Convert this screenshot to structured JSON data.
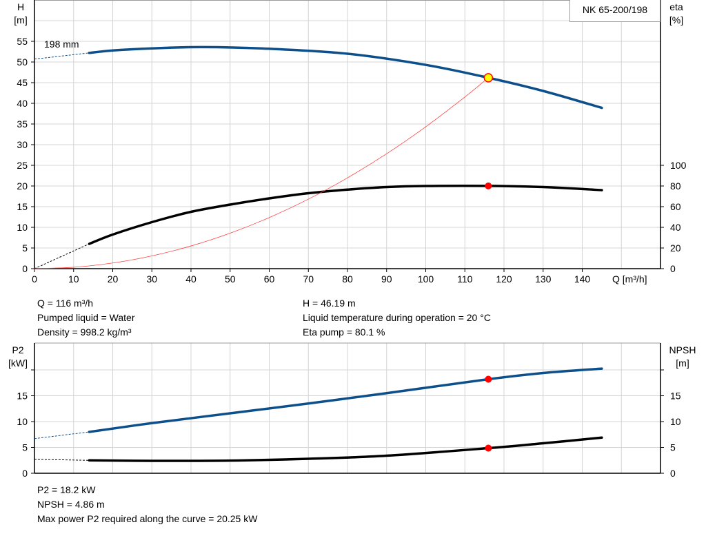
{
  "model": "NK 65-200/198",
  "chart_data": [
    {
      "type": "line",
      "name_label": "198 mm",
      "xlabel": "Q [m³/h]",
      "ylabel_left": [
        "H",
        "[m]"
      ],
      "ylabel_right": [
        "eta",
        "[%]"
      ],
      "xlim": [
        0,
        160
      ],
      "ylim_left": [
        0,
        65
      ],
      "ylim_right": [
        0,
        100
      ],
      "x_ticks": [
        0,
        10,
        20,
        30,
        40,
        50,
        60,
        70,
        80,
        90,
        100,
        110,
        120,
        130,
        140
      ],
      "y_ticks_left": [
        0,
        5,
        10,
        15,
        20,
        25,
        30,
        35,
        40,
        45,
        50,
        55
      ],
      "y_ticks_right": [
        0,
        20,
        40,
        60,
        80,
        100
      ],
      "grid": true,
      "series": [
        {
          "id": "head",
          "axis": "left",
          "color": "#0d4f8b",
          "x": [
            14,
            20,
            30,
            43,
            60,
            80,
            100,
            116,
            130,
            145
          ],
          "y": [
            52.2,
            52.8,
            53.3,
            53.6,
            53.2,
            52.0,
            49.3,
            46.19,
            43.0,
            38.9
          ],
          "extrapolated": {
            "x": [
              0,
              14
            ],
            "y": [
              50.7,
              52.2
            ]
          }
        },
        {
          "id": "eta",
          "axis": "right",
          "color": "#000000",
          "x": [
            14,
            20,
            30,
            40,
            50,
            60,
            70,
            80,
            90,
            100,
            116,
            130,
            145
          ],
          "y": [
            24,
            33,
            45,
            55,
            62,
            68,
            73,
            76.5,
            79,
            80,
            80.1,
            79,
            76
          ],
          "extrapolated": {
            "x": [
              0,
              14
            ],
            "y": [
              0,
              24
            ]
          }
        },
        {
          "id": "system",
          "axis": "left",
          "color": "#ff4040",
          "x": [
            0,
            10,
            20,
            30,
            40,
            50,
            60,
            70,
            80,
            90,
            100,
            110,
            116
          ],
          "y": [
            0,
            0.34,
            1.37,
            3.09,
            5.49,
            8.58,
            12.36,
            16.82,
            21.97,
            27.8,
            34.33,
            41.54,
            46.19
          ]
        }
      ],
      "operating_point": {
        "x": 116,
        "H": 46.19,
        "eta": 80.1
      }
    },
    {
      "type": "line",
      "ylabel_left": [
        "P2",
        "[kW]"
      ],
      "ylabel_right": [
        "NPSH",
        "[m]"
      ],
      "xlim": [
        0,
        160
      ],
      "ylim": [
        0,
        25.2
      ],
      "y_ticks": [
        0,
        5,
        10,
        15,
        20
      ],
      "y_tick_labels": [
        "0",
        "5",
        "10",
        "15",
        ""
      ],
      "grid": true,
      "series": [
        {
          "id": "p2",
          "color": "#0d4f8b",
          "x": [
            14,
            30,
            50,
            70,
            90,
            116,
            130,
            145
          ],
          "y": [
            8.0,
            9.7,
            11.6,
            13.5,
            15.5,
            18.2,
            19.4,
            20.25
          ],
          "extrapolated": {
            "x": [
              0,
              14
            ],
            "y": [
              6.7,
              8.0
            ]
          }
        },
        {
          "id": "npsh",
          "color": "#000000",
          "x": [
            14,
            30,
            50,
            70,
            90,
            116,
            130,
            145
          ],
          "y": [
            2.5,
            2.4,
            2.45,
            2.8,
            3.4,
            4.86,
            5.8,
            6.9
          ],
          "extrapolated": {
            "x": [
              0,
              14
            ],
            "y": [
              2.7,
              2.5
            ]
          }
        }
      ],
      "operating_point": {
        "x": 116,
        "P2": 18.2,
        "NPSH": 4.86
      }
    }
  ],
  "info_top": {
    "q": "Q = 116 m³/h",
    "liquid": "Pumped liquid = Water",
    "density": "Density = 998.2 kg/m³",
    "h": "H = 46.19 m",
    "temp": "Liquid temperature during operation = 20 °C",
    "eta": "Eta pump = 80.1 %"
  },
  "info_bottom": {
    "p2": "P2 = 18.2 kW",
    "npsh": "NPSH = 4.86 m",
    "maxp2": "Max power P2 required along the curve = 20.25 kW"
  }
}
